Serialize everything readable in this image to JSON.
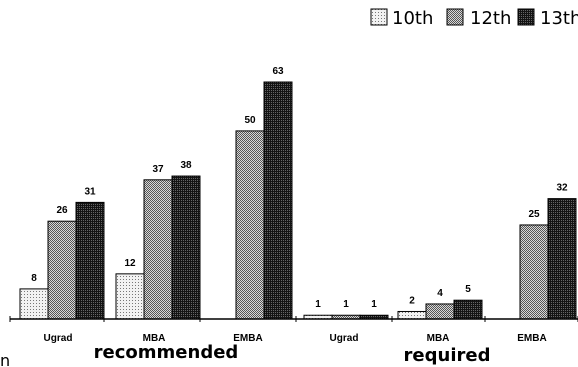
{
  "chart_data": {
    "type": "bar",
    "categories": [
      "Ugrad",
      "MBA",
      "EMBA",
      "Ugrad",
      "MBA",
      "EMBA"
    ],
    "groups": [
      {
        "label": "recommended",
        "categories": [
          "Ugrad",
          "MBA",
          "EMBA"
        ]
      },
      {
        "label": "required",
        "categories": [
          "Ugrad",
          "MBA",
          "EMBA"
        ]
      }
    ],
    "series": [
      {
        "name": "10th",
        "values": [
          8,
          12,
          null,
          1,
          2,
          null
        ],
        "pattern": "sparse-dots",
        "color": "#f2f2f2"
      },
      {
        "name": "12th",
        "values": [
          26,
          37,
          50,
          1,
          4,
          25
        ],
        "pattern": "dense-dots",
        "color": "#9a9a9a"
      },
      {
        "name": "13th",
        "values": [
          31,
          38,
          63,
          1,
          5,
          32
        ],
        "pattern": "dark-dots",
        "color": "#1f1f1f"
      }
    ],
    "ylim": [
      0,
      63
    ],
    "legend_position": "top-center",
    "grid": false,
    "stray_text": "n"
  }
}
